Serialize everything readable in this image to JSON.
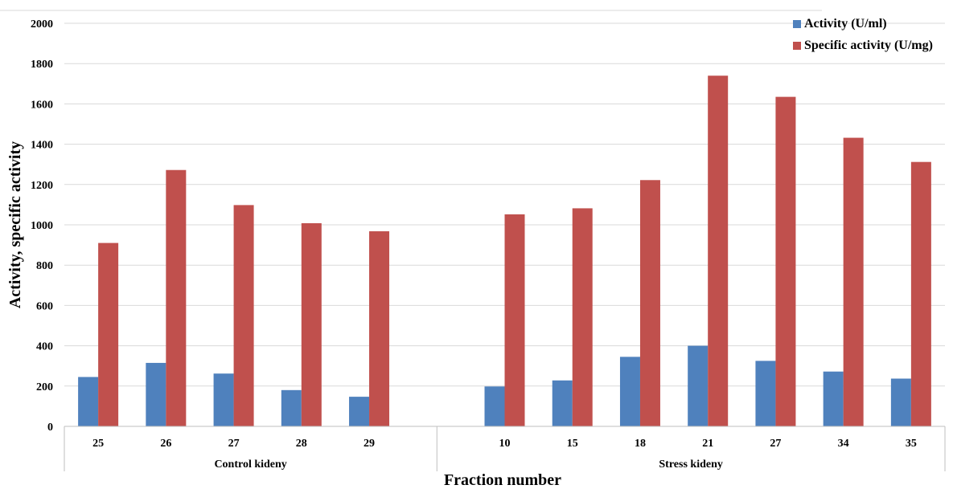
{
  "chart_data": {
    "type": "bar",
    "ylabel": "Activity, specific activity",
    "xlabel": "Fraction number",
    "ylim": [
      0,
      2000
    ],
    "yticks": [
      "0",
      "200",
      "400",
      "600",
      "800",
      "1000",
      "1200",
      "1400",
      "1600",
      "1800",
      "2000"
    ],
    "grid": true,
    "legend_position": "top-right",
    "groups": [
      {
        "label": "Control kideny",
        "categories": [
          "25",
          "26",
          "27",
          "28",
          "29"
        ]
      },
      {
        "label": "Stress kideny",
        "categories": [
          "10",
          "15",
          "18",
          "21",
          "27",
          "34",
          "35"
        ]
      }
    ],
    "categories": [
      "25",
      "26",
      "27",
      "28",
      "29",
      "",
      "10",
      "15",
      "18",
      "21",
      "27",
      "34",
      "35"
    ],
    "series": [
      {
        "name": "Activity (U/ml)",
        "color": "#4f81bd",
        "values": [
          245,
          315,
          262,
          180,
          147,
          null,
          198,
          228,
          345,
          400,
          325,
          272,
          237
        ]
      },
      {
        "name": "Specific activity (U/mg)",
        "color": "#c0504d",
        "values": [
          910,
          1272,
          1098,
          1008,
          968,
          null,
          1052,
          1082,
          1222,
          1740,
          1635,
          1432,
          1312
        ]
      }
    ]
  }
}
